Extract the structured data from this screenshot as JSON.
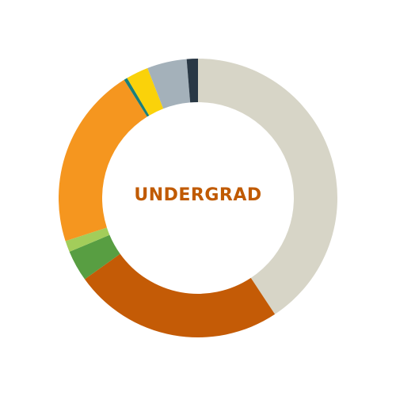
{
  "chart_data": {
    "type": "pie",
    "style": "donut",
    "center_label": "UNDERGRAD",
    "center_label_color": "#c05a00",
    "slices": [
      {
        "value": 40.7,
        "color": "#d7d5c7"
      },
      {
        "value": 24.4,
        "color": "#c45b06"
      },
      {
        "value": 3.6,
        "color": "#589e42"
      },
      {
        "value": 1.3,
        "color": "#a3cd5a"
      },
      {
        "value": 21.1,
        "color": "#f5961f"
      },
      {
        "value": 0.4,
        "color": "#1b7f7a"
      },
      {
        "value": 2.6,
        "color": "#fad20a"
      },
      {
        "value": 4.6,
        "color": "#a4b1ba"
      },
      {
        "value": 1.3,
        "color": "#293845"
      }
    ]
  }
}
